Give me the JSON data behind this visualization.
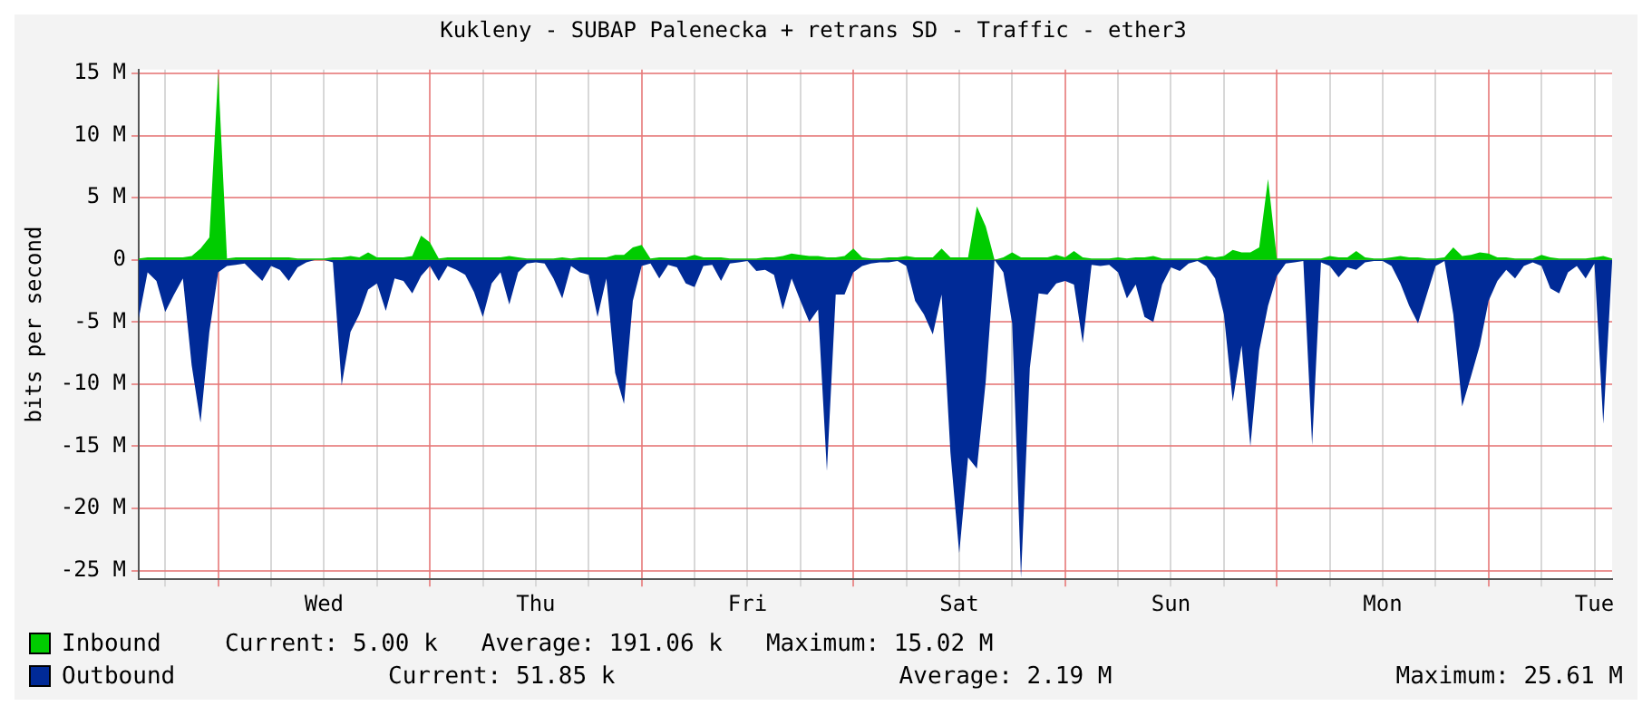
{
  "chart_data": {
    "type": "area",
    "title": "Kukleny - SUBAP Palenecka + retrans SD - Traffic - ether3",
    "ylabel": "bits per second",
    "categories": [
      null,
      null,
      null,
      null,
      null,
      null,
      null,
      null,
      null,
      null,
      null,
      null,
      null,
      null,
      null,
      null,
      null,
      null,
      null,
      null,
      null,
      "Wed",
      null,
      null,
      null,
      null,
      null,
      null,
      null,
      null,
      null,
      null,
      null,
      null,
      null,
      null,
      null,
      null,
      null,
      null,
      null,
      null,
      null,
      null,
      null,
      "Thu",
      null,
      null,
      null,
      null,
      null,
      null,
      null,
      null,
      null,
      null,
      null,
      null,
      null,
      null,
      null,
      null,
      null,
      null,
      null,
      null,
      null,
      null,
      null,
      "Fri",
      null,
      null,
      null,
      null,
      null,
      null,
      null,
      null,
      null,
      null,
      null,
      null,
      null,
      null,
      null,
      null,
      null,
      null,
      null,
      null,
      null,
      null,
      null,
      "Sat",
      null,
      null,
      null,
      null,
      null,
      null,
      null,
      null,
      null,
      null,
      null,
      null,
      null,
      null,
      null,
      null,
      null,
      null,
      null,
      null,
      null,
      null,
      null,
      "Sun",
      null,
      null,
      null,
      null,
      null,
      null,
      null,
      null,
      null,
      null,
      null,
      null,
      null,
      null,
      null,
      null,
      null,
      null,
      null,
      null,
      null,
      null,
      null,
      "Mon",
      null,
      null,
      null,
      null,
      null,
      null,
      null,
      null,
      null,
      null,
      null,
      null,
      null,
      null,
      null,
      null,
      null,
      null,
      null,
      null,
      null,
      null,
      null,
      "Tue",
      null,
      null
    ],
    "ylim": [
      -25.7,
      15.3
    ],
    "yticks": [
      {
        "value": 15,
        "label": "15 M"
      },
      {
        "value": 10,
        "label": "10 M"
      },
      {
        "value": 5,
        "label": "5 M"
      },
      0,
      {
        "value": -5,
        "label": "-5 M"
      },
      {
        "value": -10,
        "label": "-10 M"
      },
      {
        "value": -15,
        "label": "-15 M"
      },
      {
        "value": -20,
        "label": "-20 M"
      },
      {
        "value": -25,
        "label": "-25 M"
      }
    ],
    "grid": true,
    "legend": "bottom",
    "marker": "none",
    "series": [
      {
        "name": "Inbound",
        "color": "#00cc00",
        "values": [
          0.1,
          0.2,
          0.2,
          0.2,
          0.2,
          0.2,
          0.3,
          0.9,
          1.8,
          15.02,
          0.1,
          0.2,
          0.2,
          0.2,
          0.2,
          0.2,
          0.2,
          0.2,
          0.1,
          0.1,
          0.1,
          0.1,
          0.2,
          0.2,
          0.3,
          0.2,
          0.6,
          0.2,
          0.2,
          0.2,
          0.2,
          0.3,
          1.95,
          1.4,
          0.1,
          0.2,
          0.2,
          0.2,
          0.2,
          0.2,
          0.2,
          0.2,
          0.3,
          0.2,
          0.1,
          0.1,
          0.1,
          0.1,
          0.2,
          0.1,
          0.2,
          0.2,
          0.2,
          0.2,
          0.4,
          0.4,
          1,
          1.2,
          0.1,
          0.2,
          0.2,
          0.2,
          0.2,
          0.4,
          0.2,
          0.2,
          0.2,
          0.1,
          0.1,
          0.1,
          0.1,
          0.2,
          0.2,
          0.3,
          0.5,
          0.4,
          0.3,
          0.3,
          0.2,
          0.2,
          0.3,
          0.9,
          0.2,
          0.1,
          0.1,
          0.2,
          0.2,
          0.3,
          0.2,
          0.2,
          0.2,
          0.9,
          0.2,
          0.2,
          0.2,
          4.3,
          2.7,
          0,
          0.2,
          0.6,
          0.2,
          0.2,
          0.2,
          0.2,
          0.4,
          0.2,
          0.7,
          0.2,
          0.1,
          0.1,
          0.1,
          0.2,
          0.1,
          0.2,
          0.2,
          0.3,
          0.1,
          0.1,
          0.1,
          0.1,
          0.1,
          0.3,
          0.2,
          0.3,
          0.8,
          0.6,
          0.6,
          1,
          6.5,
          0.1,
          0.1,
          0.1,
          0.1,
          0.1,
          0.1,
          0.3,
          0.2,
          0.2,
          0.7,
          0.2,
          0.1,
          0.1,
          0.2,
          0.3,
          0.2,
          0.2,
          0.1,
          0.1,
          0.2,
          1,
          0.3,
          0.4,
          0.6,
          0.5,
          0.2,
          0.2,
          0.1,
          0.1,
          0.1,
          0.4,
          0.2,
          0.1,
          0.1,
          0.1,
          0.1,
          0.2,
          0.3,
          0.1
        ]
      },
      {
        "name": "Outbound",
        "color": "#002a97",
        "values": [
          -4.7,
          -1,
          -1.7,
          -4.2,
          -2.8,
          -1.5,
          -8.5,
          -13.1,
          -5.8,
          -1,
          -0.5,
          -0.4,
          -0.3,
          -1,
          -1.7,
          -0.5,
          -0.8,
          -1.7,
          -0.6,
          -0.2,
          0,
          0,
          -0.2,
          -10.1,
          -5.8,
          -4.4,
          -2.4,
          -1.9,
          -4.1,
          -1.5,
          -1.7,
          -2.7,
          -1.3,
          -0.5,
          -1.7,
          -0.5,
          -0.8,
          -1.2,
          -2.6,
          -4.6,
          -1.9,
          -1,
          -3.6,
          -1,
          -0.3,
          -0.2,
          -0.3,
          -1.5,
          -3.1,
          -0.5,
          -1,
          -1.2,
          -4.6,
          -1.5,
          -9.1,
          -11.6,
          -3.3,
          -0.5,
          -0.3,
          -1.5,
          -0.4,
          -0.6,
          -1.9,
          -2.2,
          -0.5,
          -0.4,
          -1.7,
          -0.3,
          -0.2,
          -0.1,
          -0.9,
          -0.8,
          -1.2,
          -4,
          -1.5,
          -3.3,
          -5,
          -4,
          -17,
          -2.8,
          -2.8,
          -1,
          -0.5,
          -0.3,
          -0.2,
          -0.2,
          -0.1,
          -0.5,
          -3.3,
          -4.4,
          -6,
          -2.8,
          -15.5,
          -23.6,
          -15.9,
          -16.8,
          -9.8,
          0,
          -1,
          -5.1,
          -25.6,
          -8.7,
          -2.7,
          -2.8,
          -1.9,
          -1.7,
          -2,
          -6.7,
          -0.4,
          -0.5,
          -0.4,
          -1,
          -3.1,
          -2,
          -4.6,
          -5,
          -2,
          -0.6,
          -0.9,
          -0.3,
          -0.1,
          -0.5,
          -1.5,
          -4.4,
          -11.4,
          -6.9,
          -15,
          -7.3,
          -3.7,
          -1.3,
          -0.3,
          -0.2,
          -0.1,
          -14.9,
          -0.2,
          -0.5,
          -1.4,
          -0.6,
          -0.8,
          -0.2,
          -0.1,
          -0.1,
          -0.5,
          -1.9,
          -3.7,
          -5.1,
          -2.8,
          -0.5,
          -0.1,
          -4.4,
          -11.8,
          -9.4,
          -6.9,
          -3.3,
          -1.7,
          -0.8,
          -1.5,
          -0.5,
          -0.2,
          -0.5,
          -2.3,
          -2.7,
          -1,
          -0.5,
          -1.5,
          -0.3,
          -13.2,
          -0.2
        ]
      }
    ],
    "annotations": [
      "Current: 5.00 k",
      "Average: 191.06 k",
      "Maximum: 15.02 M",
      "Current: 51.85 k",
      "Average: 2.19 M",
      "Maximum: 25.61 M"
    ]
  }
}
